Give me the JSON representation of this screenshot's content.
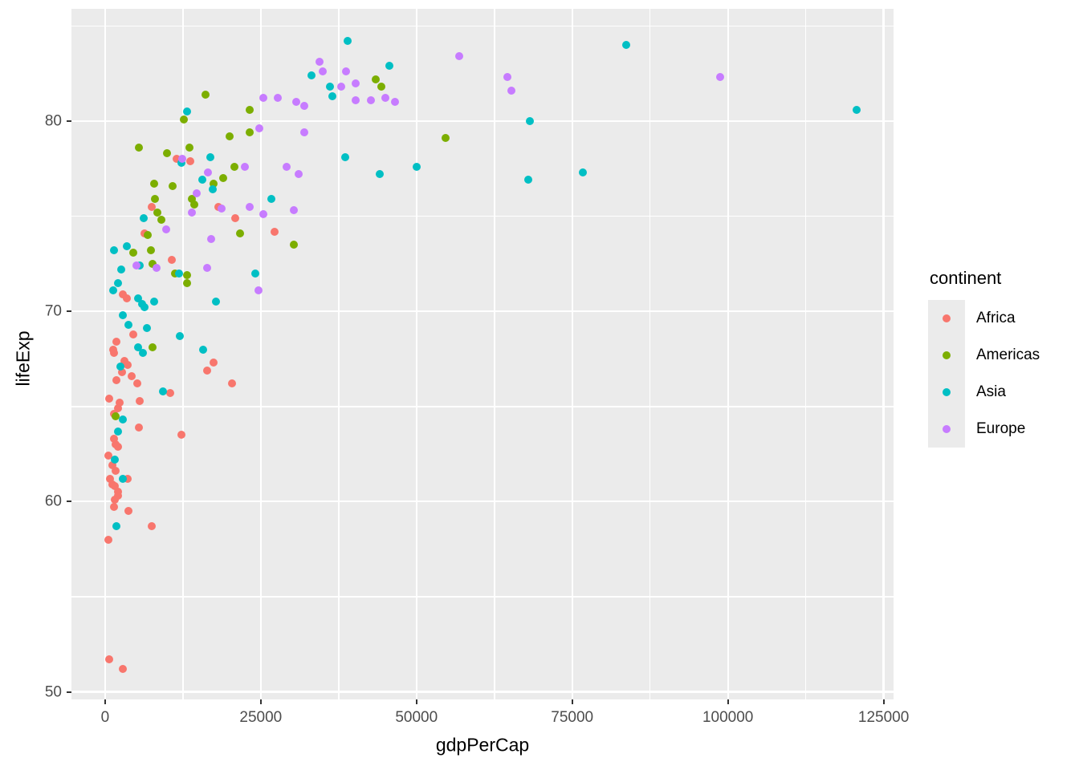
{
  "chart_data": {
    "type": "scatter",
    "title": "",
    "xlabel": "gdpPerCap",
    "ylabel": "lifeExp",
    "x_ticks": [
      0,
      25000,
      50000,
      75000,
      100000,
      125000
    ],
    "y_ticks": [
      50,
      60,
      70,
      80
    ],
    "x_minor": [
      12500,
      37500,
      62500,
      87500,
      112500
    ],
    "y_minor": [
      55,
      65,
      75,
      85
    ],
    "x_range": [
      -5400,
      126600
    ],
    "y_range": [
      49.6,
      85.9
    ],
    "grid": true,
    "legend": {
      "title": "continent",
      "position": "right",
      "entries": [
        {
          "label": "Africa",
          "color": "#F8766D"
        },
        {
          "label": "Americas",
          "color": "#7CAE00"
        },
        {
          "label": "Asia",
          "color": "#00BFC4"
        },
        {
          "label": "Europe",
          "color": "#C77CFF"
        }
      ]
    },
    "colors": {
      "panel_bg": "#EBEBEB",
      "grid": "#FFFFFF",
      "tick_text": "#4D4D4D",
      "axis_text": "#000000"
    },
    "series": [
      {
        "name": "Africa",
        "color": "#F8766D",
        "points": [
          [
            11500,
            78
          ],
          [
            13700,
            77.9
          ],
          [
            18200,
            75.5
          ],
          [
            7500,
            75.5
          ],
          [
            20900,
            74.9
          ],
          [
            27200,
            74.2
          ],
          [
            6300,
            74.1
          ],
          [
            10700,
            72.7
          ],
          [
            2800,
            70.9
          ],
          [
            3500,
            70.7
          ],
          [
            4500,
            68.8
          ],
          [
            1800,
            68.4
          ],
          [
            1300,
            68
          ],
          [
            1400,
            67.8
          ],
          [
            3100,
            67.4
          ],
          [
            3600,
            67.2
          ],
          [
            2700,
            66.8
          ],
          [
            4300,
            66.6
          ],
          [
            1800,
            66.4
          ],
          [
            5200,
            66.2
          ],
          [
            17400,
            67.3
          ],
          [
            16400,
            66.9
          ],
          [
            20400,
            66.2
          ],
          [
            10400,
            65.7
          ],
          [
            600,
            65.4
          ],
          [
            2300,
            65.2
          ],
          [
            2100,
            64.9
          ],
          [
            5500,
            65.3
          ],
          [
            1400,
            64.6
          ],
          [
            5400,
            63.9
          ],
          [
            12200,
            63.5
          ],
          [
            1400,
            63.3
          ],
          [
            1700,
            63
          ],
          [
            2100,
            62.9
          ],
          [
            500,
            62.4
          ],
          [
            1200,
            61.9
          ],
          [
            1700,
            61.6
          ],
          [
            800,
            61.2
          ],
          [
            3600,
            61.2
          ],
          [
            1200,
            60.9
          ],
          [
            1500,
            60.8
          ],
          [
            2100,
            60.5
          ],
          [
            2100,
            60.3
          ],
          [
            1500,
            60.1
          ],
          [
            1400,
            59.7
          ],
          [
            3700,
            59.5
          ],
          [
            7500,
            58.7
          ],
          [
            500,
            58
          ],
          [
            600,
            51.7
          ],
          [
            2800,
            51.2
          ]
        ]
      },
      {
        "name": "Americas",
        "color": "#7CAE00",
        "points": [
          [
            16100,
            81.4
          ],
          [
            23200,
            80.6
          ],
          [
            12600,
            80.1
          ],
          [
            20000,
            79.2
          ],
          [
            23200,
            79.4
          ],
          [
            5400,
            78.6
          ],
          [
            9900,
            78.3
          ],
          [
            13500,
            78.6
          ],
          [
            20800,
            77.6
          ],
          [
            19000,
            77
          ],
          [
            17400,
            76.7
          ],
          [
            13900,
            75.9
          ],
          [
            14300,
            75.6
          ],
          [
            7900,
            76.7
          ],
          [
            10800,
            76.6
          ],
          [
            8000,
            75.9
          ],
          [
            8400,
            75.2
          ],
          [
            9000,
            74.8
          ],
          [
            6800,
            74
          ],
          [
            21700,
            74.1
          ],
          [
            30300,
            73.5
          ],
          [
            4500,
            73.1
          ],
          [
            7300,
            73.2
          ],
          [
            7600,
            72.5
          ],
          [
            11200,
            72
          ],
          [
            13200,
            71.9
          ],
          [
            13100,
            71.5
          ],
          [
            7600,
            68.1
          ],
          [
            1700,
            64.5
          ],
          [
            43400,
            82.2
          ],
          [
            44300,
            81.8
          ],
          [
            54700,
            79.1
          ]
        ]
      },
      {
        "name": "Asia",
        "color": "#00BFC4",
        "points": [
          [
            38900,
            84.2
          ],
          [
            83700,
            84
          ],
          [
            45600,
            82.9
          ],
          [
            33100,
            82.4
          ],
          [
            36100,
            81.8
          ],
          [
            36500,
            81.3
          ],
          [
            120700,
            80.6
          ],
          [
            13100,
            80.5
          ],
          [
            68200,
            80
          ],
          [
            38500,
            78.1
          ],
          [
            16900,
            78.1
          ],
          [
            12200,
            77.8
          ],
          [
            50000,
            77.6
          ],
          [
            76700,
            77.3
          ],
          [
            44100,
            77.2
          ],
          [
            15600,
            76.9
          ],
          [
            67900,
            76.9
          ],
          [
            17300,
            76.4
          ],
          [
            26700,
            75.9
          ],
          [
            6200,
            74.9
          ],
          [
            3500,
            73.4
          ],
          [
            1400,
            73.2
          ],
          [
            5500,
            72.4
          ],
          [
            2600,
            72.2
          ],
          [
            11900,
            72
          ],
          [
            24100,
            72
          ],
          [
            2100,
            71.5
          ],
          [
            1300,
            71.1
          ],
          [
            5300,
            70.7
          ],
          [
            17800,
            70.5
          ],
          [
            7900,
            70.5
          ],
          [
            5900,
            70.4
          ],
          [
            6300,
            70.2
          ],
          [
            2800,
            69.8
          ],
          [
            3700,
            69.3
          ],
          [
            6700,
            69.1
          ],
          [
            12000,
            68.7
          ],
          [
            5300,
            68.1
          ],
          [
            15700,
            68
          ],
          [
            6100,
            67.8
          ],
          [
            2400,
            67.1
          ],
          [
            9300,
            65.8
          ],
          [
            2800,
            64.3
          ],
          [
            2100,
            63.7
          ],
          [
            1500,
            62.2
          ],
          [
            2800,
            61.2
          ],
          [
            1800,
            58.7
          ]
        ]
      },
      {
        "name": "Europe",
        "color": "#C77CFF",
        "points": [
          [
            56800,
            83.4
          ],
          [
            34400,
            83.1
          ],
          [
            38700,
            82.6
          ],
          [
            34900,
            82.6
          ],
          [
            64600,
            82.3
          ],
          [
            98700,
            82.3
          ],
          [
            40200,
            82
          ],
          [
            37900,
            81.8
          ],
          [
            65300,
            81.6
          ],
          [
            25400,
            81.2
          ],
          [
            27700,
            81.2
          ],
          [
            45000,
            81.2
          ],
          [
            40200,
            81.1
          ],
          [
            42700,
            81.1
          ],
          [
            30700,
            81
          ],
          [
            46500,
            81
          ],
          [
            32000,
            80.8
          ],
          [
            24700,
            79.6
          ],
          [
            32000,
            79.4
          ],
          [
            12400,
            78
          ],
          [
            22400,
            77.6
          ],
          [
            29100,
            77.6
          ],
          [
            16500,
            77.3
          ],
          [
            31100,
            77.2
          ],
          [
            14700,
            76.2
          ],
          [
            23200,
            75.5
          ],
          [
            18700,
            75.4
          ],
          [
            30300,
            75.3
          ],
          [
            14000,
            75.2
          ],
          [
            25400,
            75.1
          ],
          [
            9800,
            74.3
          ],
          [
            17000,
            73.8
          ],
          [
            5000,
            72.4
          ],
          [
            8200,
            72.3
          ],
          [
            16400,
            72.3
          ],
          [
            24600,
            71.1
          ]
        ]
      }
    ]
  }
}
